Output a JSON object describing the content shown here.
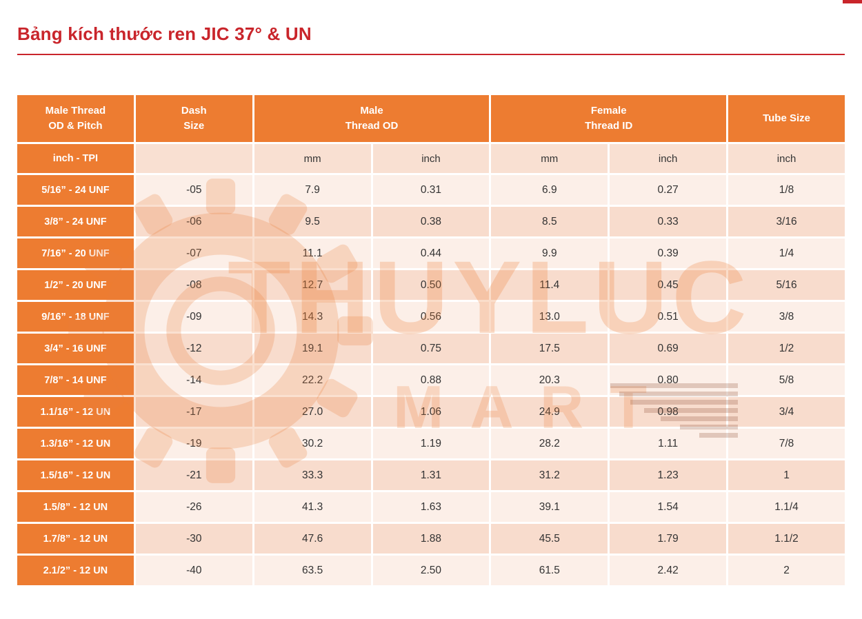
{
  "page": {
    "title": "Bảng kích thước ren JIC 37° & UN"
  },
  "watermark": {
    "brand_line1": "THUYLUC",
    "brand_line2": "MART"
  },
  "colors": {
    "accent_orange": "#ed7c31",
    "title_red": "#c9252b",
    "row_light": "#fcefe8",
    "row_dark": "#f8dccd"
  },
  "table": {
    "header": {
      "col_thread": "Male Thread\nOD & Pitch",
      "col_dash": "Dash\nSize",
      "col_male": "Male\nThread OD",
      "col_female": "Female\nThread ID",
      "col_tube": "Tube Size"
    },
    "subheader": [
      "inch - TPI",
      "",
      "mm",
      "inch",
      "mm",
      "inch",
      "inch"
    ],
    "rows": [
      [
        "5/16” - 24 UNF",
        "-05",
        "7.9",
        "0.31",
        "6.9",
        "0.27",
        "1/8"
      ],
      [
        "3/8” - 24 UNF",
        "-06",
        "9.5",
        "0.38",
        "8.5",
        "0.33",
        "3/16"
      ],
      [
        "7/16” - 20 UNF",
        "-07",
        "11.1",
        "0.44",
        "9.9",
        "0.39",
        "1/4"
      ],
      [
        "1/2” - 20 UNF",
        "-08",
        "12.7",
        "0.50",
        "11.4",
        "0.45",
        "5/16"
      ],
      [
        "9/16” - 18 UNF",
        "-09",
        "14.3",
        "0.56",
        "13.0",
        "0.51",
        "3/8"
      ],
      [
        "3/4” - 16 UNF",
        "-12",
        "19.1",
        "0.75",
        "17.5",
        "0.69",
        "1/2"
      ],
      [
        "7/8” - 14 UNF",
        "-14",
        "22.2",
        "0.88",
        "20.3",
        "0.80",
        "5/8"
      ],
      [
        "1.1/16” - 12 UN",
        "-17",
        "27.0",
        "1.06",
        "24.9",
        "0.98",
        "3/4"
      ],
      [
        "1.3/16” - 12 UN",
        "-19",
        "30.2",
        "1.19",
        "28.2",
        "1.11",
        "7/8"
      ],
      [
        "1.5/16” - 12 UN",
        "-21",
        "33.3",
        "1.31",
        "31.2",
        "1.23",
        "1"
      ],
      [
        "1.5/8” - 12 UN",
        "-26",
        "41.3",
        "1.63",
        "39.1",
        "1.54",
        "1.1/4"
      ],
      [
        "1.7/8” - 12 UN",
        "-30",
        "47.6",
        "1.88",
        "45.5",
        "1.79",
        "1.1/2"
      ],
      [
        "2.1/2” - 12 UN",
        "-40",
        "63.5",
        "2.50",
        "61.5",
        "2.42",
        "2"
      ]
    ]
  }
}
